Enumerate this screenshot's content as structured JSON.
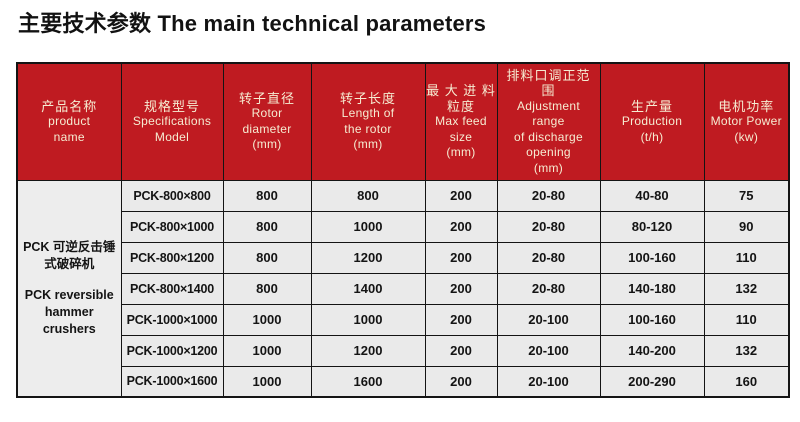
{
  "page": {
    "title": "主要技术参数 The main technical parameters"
  },
  "colors": {
    "header_bg": "#bf1b21",
    "header_text": "#f6ecd2",
    "cell_bg": "#eaeaea",
    "border": "#141414",
    "title_text": "#121212"
  },
  "table": {
    "headers": [
      {
        "id": "product-name",
        "lines": [
          "产品名称",
          "product",
          "name"
        ]
      },
      {
        "id": "model",
        "lines": [
          "规格型号",
          "Specifications",
          "Model"
        ]
      },
      {
        "id": "rotor-diameter",
        "lines": [
          "转子直径",
          "Rotor",
          "diameter",
          "(mm)"
        ]
      },
      {
        "id": "rotor-length",
        "lines": [
          "转子长度",
          "Length of",
          "the rotor",
          "(mm)"
        ]
      },
      {
        "id": "max-feed-size",
        "lines": [
          "最 大 进 料",
          "粒度",
          "Max feed",
          "size",
          "(mm)"
        ]
      },
      {
        "id": "adjustment-range",
        "lines": [
          "排料口调正范",
          "围",
          "Adjustment",
          "range",
          "of discharge",
          "opening",
          "(mm)"
        ]
      },
      {
        "id": "production",
        "lines": [
          "生产量",
          "Production",
          "(t/h)"
        ]
      },
      {
        "id": "motor-power",
        "lines": [
          "电机功率",
          "Motor Power",
          "(kw)"
        ]
      }
    ],
    "product_name": {
      "lines": [
        "PCK 可逆反击锤",
        "式破碎机",
        "",
        "PCK reversible",
        "hammer",
        "crushers"
      ]
    },
    "rows": [
      {
        "model": "PCK-800×800",
        "rotor_diameter": "800",
        "rotor_length": "800",
        "max_feed": "200",
        "adjustment": "20-80",
        "production": "40-80",
        "motor_power": "75"
      },
      {
        "model": "PCK-800×1000",
        "rotor_diameter": "800",
        "rotor_length": "1000",
        "max_feed": "200",
        "adjustment": "20-80",
        "production": "80-120",
        "motor_power": "90"
      },
      {
        "model": "PCK-800×1200",
        "rotor_diameter": "800",
        "rotor_length": "1200",
        "max_feed": "200",
        "adjustment": "20-80",
        "production": "100-160",
        "motor_power": "110"
      },
      {
        "model": "PCK-800×1400",
        "rotor_diameter": "800",
        "rotor_length": "1400",
        "max_feed": "200",
        "adjustment": "20-80",
        "production": "140-180",
        "motor_power": "132"
      },
      {
        "model": "PCK-1000×1000",
        "rotor_diameter": "1000",
        "rotor_length": "1000",
        "max_feed": "200",
        "adjustment": "20-100",
        "production": "100-160",
        "motor_power": "110"
      },
      {
        "model": "PCK-1000×1200",
        "rotor_diameter": "1000",
        "rotor_length": "1200",
        "max_feed": "200",
        "adjustment": "20-100",
        "production": "140-200",
        "motor_power": "132"
      },
      {
        "model": "PCK-1000×1600",
        "rotor_diameter": "1000",
        "rotor_length": "1600",
        "max_feed": "200",
        "adjustment": "20-100",
        "production": "200-290",
        "motor_power": "160"
      }
    ]
  },
  "chart_data": {
    "type": "table",
    "title": "主要技术参数 The main technical parameters",
    "columns": [
      "产品名称 product name",
      "规格型号 Specifications Model",
      "转子直径 Rotor diameter (mm)",
      "转子长度 Length of the rotor (mm)",
      "最大进料粒度 Max feed size (mm)",
      "排料口调正范围 Adjustment range of discharge opening (mm)",
      "生产量 Production (t/h)",
      "电机功率 Motor Power (kw)"
    ],
    "rows": [
      [
        "PCK 可逆反击锤式破碎机 PCK reversible hammer crushers",
        "PCK-800×800",
        800,
        800,
        200,
        "20-80",
        "40-80",
        75
      ],
      [
        "",
        "PCK-800×1000",
        800,
        1000,
        200,
        "20-80",
        "80-120",
        90
      ],
      [
        "",
        "PCK-800×1200",
        800,
        1200,
        200,
        "20-80",
        "100-160",
        110
      ],
      [
        "",
        "PCK-800×1400",
        800,
        1400,
        200,
        "20-80",
        "140-180",
        132
      ],
      [
        "",
        "PCK-1000×1000",
        1000,
        1000,
        200,
        "20-100",
        "100-160",
        110
      ],
      [
        "",
        "PCK-1000×1200",
        1000,
        1200,
        200,
        "20-100",
        "140-200",
        132
      ],
      [
        "",
        "PCK-1000×1600",
        1000,
        1600,
        200,
        "20-100",
        "200-290",
        160
      ]
    ]
  }
}
